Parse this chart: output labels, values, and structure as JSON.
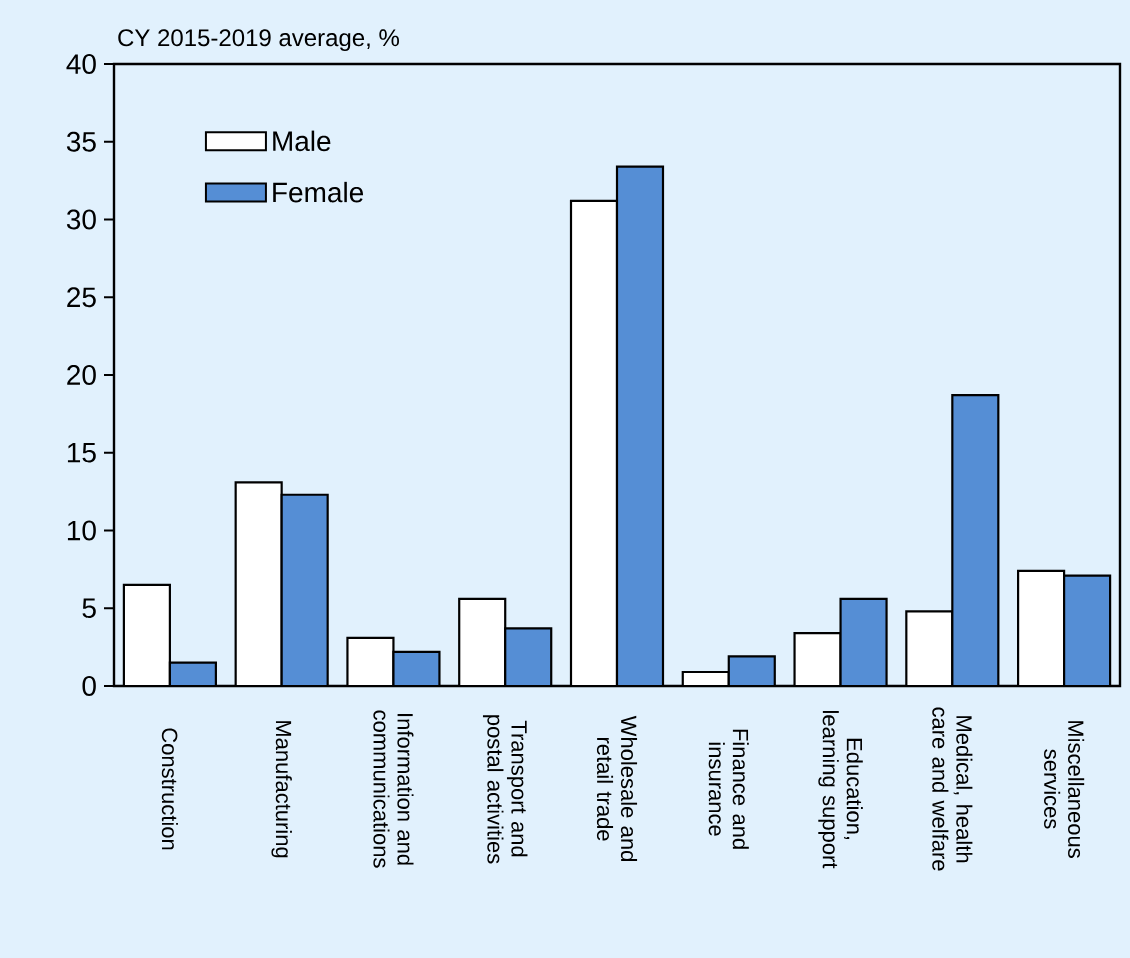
{
  "chart_data": {
    "type": "bar",
    "title": "CY 2015-2019 average, %",
    "categories": [
      "Construction",
      "Manufacturing",
      "Information and communications",
      "Transport and postal activities",
      "Wholesale and retail trade",
      "Finance and insurance",
      "Education, learning support",
      "Medical, health care and welfare",
      "Miscellaneous services"
    ],
    "series": [
      {
        "name": "Male",
        "color": "#ffffff",
        "values": [
          6.5,
          13.1,
          3.1,
          5.6,
          31.2,
          0.9,
          3.4,
          4.8,
          7.4
        ]
      },
      {
        "name": "Female",
        "color": "#558ed5",
        "values": [
          1.5,
          12.3,
          2.2,
          3.7,
          33.4,
          1.9,
          5.6,
          18.7,
          7.1
        ]
      }
    ],
    "ylim": [
      0,
      40
    ],
    "yticks": [
      0,
      5,
      10,
      15,
      20,
      25,
      30,
      35,
      40
    ],
    "legend": "top left",
    "grid": false
  }
}
